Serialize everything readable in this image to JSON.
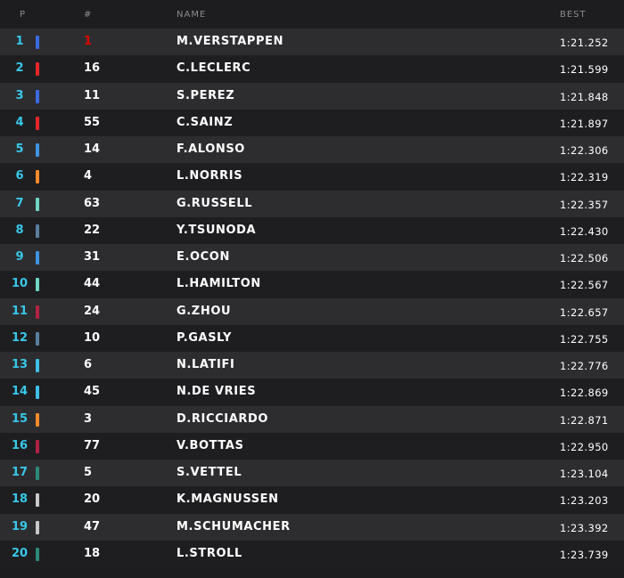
{
  "header": {
    "pos": "P",
    "num": "#",
    "name": "NAME",
    "best": "BEST"
  },
  "rows": [
    {
      "pos": "1",
      "num": "1",
      "name": "M.VERSTAPPEN",
      "time": "1:21.252",
      "color": "#3a6be0",
      "num_red": true
    },
    {
      "pos": "2",
      "num": "16",
      "name": "C.LECLERC",
      "time": "1:21.599",
      "color": "#e8262a"
    },
    {
      "pos": "3",
      "num": "11",
      "name": "S.PEREZ",
      "time": "1:21.848",
      "color": "#3a6be0"
    },
    {
      "pos": "4",
      "num": "55",
      "name": "C.SAINZ",
      "time": "1:21.897",
      "color": "#e8262a"
    },
    {
      "pos": "5",
      "num": "14",
      "name": "F.ALONSO",
      "time": "1:22.306",
      "color": "#3f94e2"
    },
    {
      "pos": "6",
      "num": "4",
      "name": "L.NORRIS",
      "time": "1:22.319",
      "color": "#f58a2b"
    },
    {
      "pos": "7",
      "num": "63",
      "name": "G.RUSSELL",
      "time": "1:22.357",
      "color": "#6fd6c4"
    },
    {
      "pos": "8",
      "num": "22",
      "name": "Y.TSUNODA",
      "time": "1:22.430",
      "color": "#5a7f9e"
    },
    {
      "pos": "9",
      "num": "31",
      "name": "E.OCON",
      "time": "1:22.506",
      "color": "#3f94e2"
    },
    {
      "pos": "10",
      "num": "44",
      "name": "L.HAMILTON",
      "time": "1:22.567",
      "color": "#6fd6c4"
    },
    {
      "pos": "11",
      "num": "24",
      "name": "G.ZHOU",
      "time": "1:22.657",
      "color": "#b12244"
    },
    {
      "pos": "12",
      "num": "10",
      "name": "P.GASLY",
      "time": "1:22.755",
      "color": "#5a7f9e"
    },
    {
      "pos": "13",
      "num": "6",
      "name": "N.LATIFI",
      "time": "1:22.776",
      "color": "#3fc0e8"
    },
    {
      "pos": "14",
      "num": "45",
      "name": "N.DE VRIES",
      "time": "1:22.869",
      "color": "#3fc0e8"
    },
    {
      "pos": "15",
      "num": "3",
      "name": "D.RICCIARDO",
      "time": "1:22.871",
      "color": "#f58a2b"
    },
    {
      "pos": "16",
      "num": "77",
      "name": "V.BOTTAS",
      "time": "1:22.950",
      "color": "#b12244"
    },
    {
      "pos": "17",
      "num": "5",
      "name": "S.VETTEL",
      "time": "1:23.104",
      "color": "#2c8a7a"
    },
    {
      "pos": "18",
      "num": "20",
      "name": "K.MAGNUSSEN",
      "time": "1:23.203",
      "color": "#c8c8c8"
    },
    {
      "pos": "19",
      "num": "47",
      "name": "M.SCHUMACHER",
      "time": "1:23.392",
      "color": "#c8c8c8"
    },
    {
      "pos": "20",
      "num": "18",
      "name": "L.STROLL",
      "time": "1:23.739",
      "color": "#2c8a7a"
    }
  ]
}
